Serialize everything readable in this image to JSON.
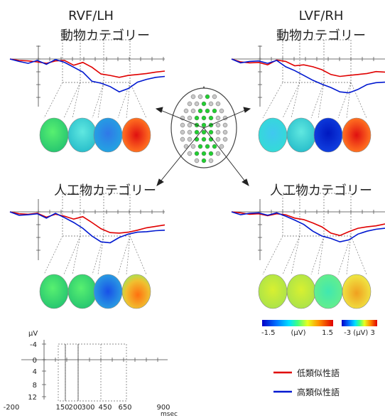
{
  "columns": {
    "left": "RVF/LH",
    "right": "LVF/RH"
  },
  "panels": [
    {
      "id": "tl",
      "title": "動物カテゴリー",
      "red": [
        0,
        0.6,
        0.8,
        1.2,
        1.8,
        0.8,
        0.6,
        2.6,
        1.4,
        3.4,
        6.2,
        6.8,
        7.6,
        6.8,
        6.4,
        6.0,
        5.4,
        5.0
      ],
      "blue": [
        0,
        1.0,
        1.8,
        0.6,
        2.2,
        0.2,
        1.4,
        3.4,
        5.4,
        9.2,
        10.0,
        11.4,
        13.6,
        12.2,
        9.6,
        8.4,
        7.6,
        7.2
      ]
    },
    {
      "id": "tr",
      "title": "動物カテゴリー",
      "red": [
        0,
        1.2,
        1.6,
        1.4,
        2.4,
        0.4,
        1.0,
        2.8,
        2.4,
        3.2,
        4.4,
        6.4,
        7.2,
        6.8,
        6.4,
        6.0,
        5.2,
        5.4
      ],
      "blue": [
        0,
        1.6,
        1.0,
        0.8,
        1.8,
        0.6,
        3.2,
        4.8,
        6.8,
        8.8,
        10.4,
        11.8,
        13.6,
        14.0,
        12.6,
        10.6,
        9.8,
        9.6
      ]
    },
    {
      "id": "bl",
      "title": "人工物カテゴリー",
      "red": [
        0,
        0.8,
        1.0,
        0.6,
        2.2,
        1.0,
        1.8,
        3.0,
        2.0,
        4.4,
        7.0,
        8.6,
        8.8,
        8.4,
        7.6,
        6.6,
        6.0,
        5.4
      ],
      "blue": [
        0,
        1.4,
        1.2,
        0.8,
        2.6,
        0.6,
        2.4,
        4.4,
        6.8,
        10.0,
        12.4,
        12.8,
        10.6,
        9.2,
        8.4,
        8.2,
        7.8,
        7.6
      ]
    },
    {
      "id": "br",
      "title": "人工物カテゴリー",
      "red": [
        0,
        0.4,
        1.0,
        0.8,
        1.6,
        0.8,
        1.2,
        2.6,
        3.2,
        4.6,
        6.2,
        8.8,
        9.8,
        8.2,
        6.8,
        6.2,
        5.8,
        5.0
      ],
      "blue": [
        0,
        1.2,
        0.6,
        0.4,
        1.4,
        0.4,
        1.8,
        3.4,
        5.2,
        8.0,
        10.0,
        11.0,
        12.4,
        11.6,
        9.2,
        8.0,
        7.2,
        6.8
      ]
    }
  ],
  "axis": {
    "unit": "µV",
    "y_ticks": [
      "-4",
      "0",
      "4",
      "8",
      "12"
    ],
    "x_ticks": [
      "-200",
      "150",
      "200",
      "300",
      "450",
      "650",
      "900"
    ],
    "x_unit": "msec"
  },
  "colorbars": [
    {
      "min": "-1.5",
      "unit": "(µV)",
      "max": "1.5"
    },
    {
      "label": "-3 (µV) 3"
    }
  ],
  "legend": [
    {
      "label": "低類似性語",
      "color": "#e00000"
    },
    {
      "label": "高類似性語",
      "color": "#0018d0"
    }
  ],
  "colors": {
    "red": "#e00000",
    "blue": "#0018d0",
    "axis": "#444444",
    "dashed": "#666666"
  }
}
